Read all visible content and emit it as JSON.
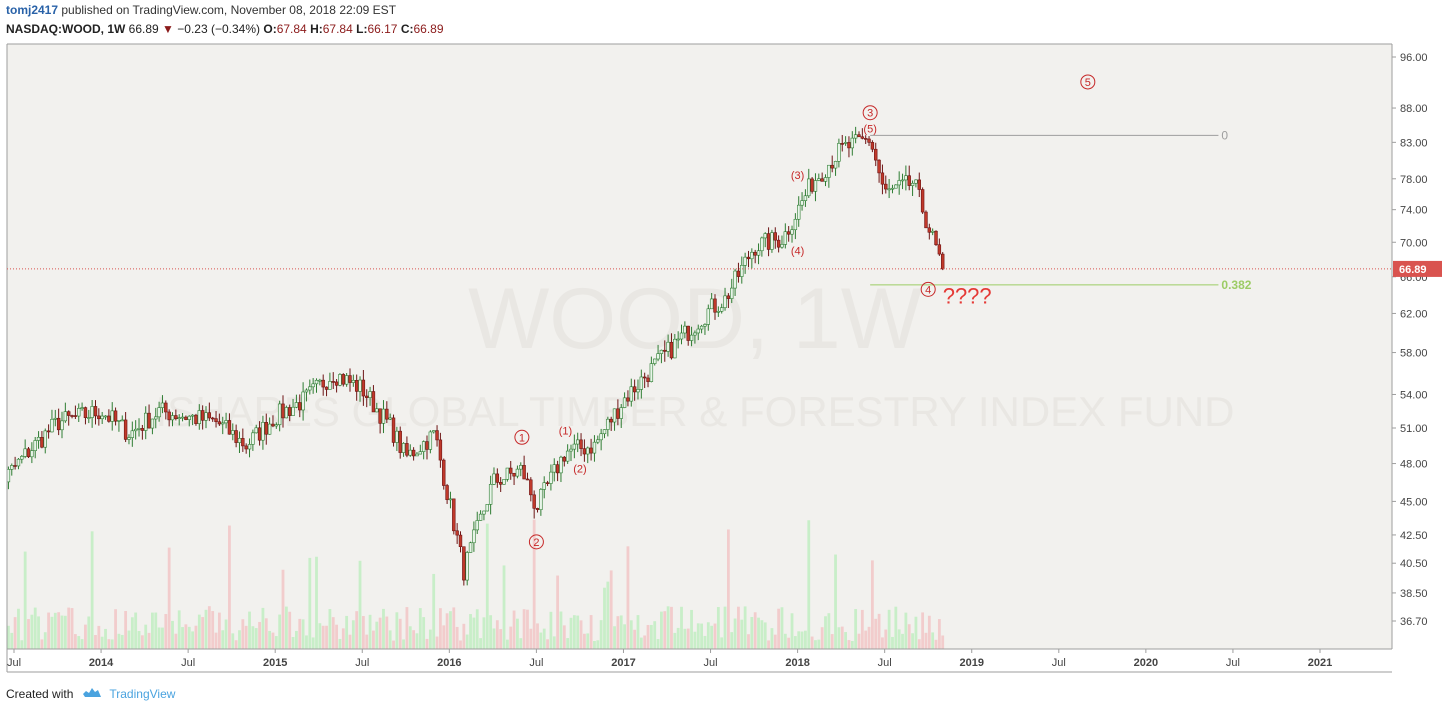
{
  "header": {
    "user": "tomj2417",
    "published": " published on TradingView.com, November 08, 2018 22:09 EST",
    "symbol": "NASDAQ:WOOD, 1W",
    "last": "66.89",
    "change": "−0.23 (−0.34%)",
    "o_label": "O:",
    "o_val": "67.84",
    "h_label": "H:",
    "h_val": "67.84",
    "l_label": "L:",
    "l_val": "66.17",
    "c_label": "C:",
    "c_val": "66.89"
  },
  "watermark": {
    "line1": "WOOD, 1W",
    "line2": "ISHARES GLOBAL TIMBER & FORESTRY INDEX FUND"
  },
  "footer": {
    "created_with": "Created with",
    "brand": "TradingView"
  },
  "colors": {
    "up": "#2e7d32",
    "up_fill": "#e8f5e9",
    "down": "#6d1414",
    "down_fill": "#c0392b",
    "vol_up": "#c8eec8",
    "vol_down": "#f2cccc",
    "price_line": "#d9534f",
    "fib0": "#9e9e9e",
    "fib382": "#9ccc65",
    "annotation": "#c62828",
    "plot_bg": "#f2f1ee"
  },
  "chart_data": {
    "type": "candlestick",
    "title": "NASDAQ:WOOD, 1W",
    "y_scale": "log",
    "ylim": [
      35.5,
      97.5
    ],
    "y_ticks": [
      "96.00",
      "88.00",
      "83.00",
      "78.00",
      "74.00",
      "70.00",
      "66.00",
      "62.00",
      "58.00",
      "54.00",
      "51.00",
      "48.00",
      "45.00",
      "42.50",
      "40.50",
      "38.50",
      "36.70"
    ],
    "x_ticks": [
      "Jul",
      "2014",
      "Jul",
      "2015",
      "Jul",
      "2016",
      "Jul",
      "2017",
      "Jul",
      "2018",
      "Jul",
      "2019",
      "Jul",
      "2020",
      "Jul",
      "2021"
    ],
    "x_tick_dates": [
      "2013-07",
      "2014-01",
      "2014-07",
      "2015-01",
      "2015-07",
      "2016-01",
      "2016-07",
      "2017-01",
      "2017-07",
      "2018-01",
      "2018-07",
      "2019-01",
      "2019-07",
      "2020-01",
      "2020-07",
      "2021-01"
    ],
    "last_price": 66.89,
    "last_price_label": "66.89",
    "price_path": [
      [
        "2013-05",
        45.0
      ],
      [
        "2013-08",
        49.0
      ],
      [
        "2013-10",
        51.5
      ],
      [
        "2014-01",
        52.5
      ],
      [
        "2014-03",
        50.5
      ],
      [
        "2014-05",
        52.5
      ],
      [
        "2014-07",
        52.0
      ],
      [
        "2014-09",
        51.5
      ],
      [
        "2014-11",
        49.5
      ],
      [
        "2015-01",
        52.0
      ],
      [
        "2015-03",
        53.5
      ],
      [
        "2015-05",
        56.0
      ],
      [
        "2015-07",
        54.5
      ],
      [
        "2015-09",
        51.0
      ],
      [
        "2015-10",
        48.5
      ],
      [
        "2015-12",
        50.5
      ],
      [
        "2016-02",
        40.0
      ],
      [
        "2016-04",
        46.5
      ],
      [
        "2016-06",
        47.5
      ],
      [
        "2016-07",
        44.5
      ],
      [
        "2016-09",
        49.0
      ],
      [
        "2016-11",
        49.5
      ],
      [
        "2017-01",
        53.5
      ],
      [
        "2017-03",
        56.5
      ],
      [
        "2017-05",
        59.5
      ],
      [
        "2017-07",
        62.5
      ],
      [
        "2017-08",
        63.5
      ],
      [
        "2017-10",
        69.5
      ],
      [
        "2017-12",
        70.5
      ],
      [
        "2018-02",
        77.5
      ],
      [
        "2018-04",
        82.0
      ],
      [
        "2018-06",
        83.5
      ],
      [
        "2018-07",
        76.0
      ],
      [
        "2018-09",
        77.5
      ],
      [
        "2018-10",
        72.0
      ],
      [
        "2018-11",
        66.89
      ]
    ],
    "volume_hint": "relative volume bars along bottom of plot, spikes in early 2014, mid 2015, 2016 and 2018",
    "annotations": [
      {
        "text": "1",
        "circled": true,
        "date": "2016-06",
        "price": 50.2
      },
      {
        "text": "2",
        "circled": true,
        "date": "2016-07",
        "price": 42.0
      },
      {
        "text": "(1)",
        "circled": false,
        "date": "2016-09",
        "price": 50.8
      },
      {
        "text": "(2)",
        "circled": false,
        "date": "2016-10",
        "price": 47.6
      },
      {
        "text": "(3)",
        "circled": false,
        "date": "2018-01",
        "price": 78.5
      },
      {
        "text": "(4)",
        "circled": false,
        "date": "2018-01",
        "price": 69.0
      },
      {
        "text": "3",
        "circled": true,
        "date": "2018-06",
        "price": 87.3
      },
      {
        "text": "(5)",
        "circled": false,
        "date": "2018-06",
        "price": 85.0
      },
      {
        "text": "5",
        "circled": true,
        "date": "2019-09",
        "price": 92.0
      },
      {
        "text": "4",
        "circled": true,
        "date": "2018-10",
        "price": 64.6
      },
      {
        "text": "????",
        "circled": false,
        "big": true,
        "date": "2018-11",
        "price": 64.7
      }
    ],
    "fib_levels": [
      {
        "label": "0",
        "price": 84.0,
        "start": "2018-06",
        "end": "2020-06"
      },
      {
        "label": "0.382",
        "price": 65.1,
        "start": "2018-06",
        "end": "2020-06"
      }
    ]
  }
}
